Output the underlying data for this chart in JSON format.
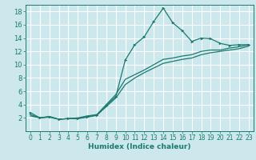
{
  "xlabel": "Humidex (Indice chaleur)",
  "ylabel": "",
  "bg_color": "#cce8ec",
  "grid_color": "#ffffff",
  "line_color": "#1a7a6e",
  "xlim": [
    -0.5,
    23.5
  ],
  "ylim": [
    0,
    19
  ],
  "xticks": [
    0,
    1,
    2,
    3,
    4,
    5,
    6,
    7,
    8,
    9,
    10,
    11,
    12,
    13,
    14,
    15,
    16,
    17,
    18,
    19,
    20,
    21,
    22,
    23
  ],
  "yticks": [
    2,
    4,
    6,
    8,
    10,
    12,
    14,
    16,
    18
  ],
  "line1_x": [
    0,
    1,
    2,
    3,
    4,
    5,
    6,
    7,
    8,
    9,
    10,
    11,
    12,
    13,
    14,
    15,
    16,
    17,
    18,
    19,
    20,
    21,
    22,
    23
  ],
  "line1_y": [
    2.8,
    2.0,
    2.2,
    1.8,
    1.9,
    1.9,
    2.2,
    2.4,
    3.9,
    5.2,
    10.7,
    13.0,
    14.2,
    16.5,
    18.5,
    16.3,
    15.1,
    13.5,
    14.0,
    13.9,
    13.2,
    12.9,
    13.0,
    13.0
  ],
  "line2_x": [
    0,
    1,
    2,
    3,
    4,
    5,
    6,
    7,
    8,
    9,
    10,
    11,
    12,
    13,
    14,
    15,
    16,
    17,
    18,
    19,
    20,
    21,
    22,
    23
  ],
  "line2_y": [
    2.5,
    2.0,
    2.2,
    1.8,
    1.9,
    2.0,
    2.3,
    2.5,
    4.0,
    5.5,
    7.8,
    8.5,
    9.2,
    10.0,
    10.8,
    11.0,
    11.3,
    11.5,
    12.0,
    12.2,
    12.2,
    12.5,
    12.7,
    13.0
  ],
  "line3_x": [
    0,
    1,
    2,
    3,
    4,
    5,
    6,
    7,
    8,
    9,
    10,
    11,
    12,
    13,
    14,
    15,
    16,
    17,
    18,
    19,
    20,
    21,
    22,
    23
  ],
  "line3_y": [
    2.3,
    2.0,
    2.1,
    1.8,
    1.9,
    1.9,
    2.1,
    2.4,
    3.7,
    5.0,
    7.0,
    8.0,
    8.8,
    9.5,
    10.2,
    10.5,
    10.8,
    11.0,
    11.5,
    11.8,
    12.0,
    12.2,
    12.4,
    12.8
  ],
  "label_fontsize": 5.5,
  "xlabel_fontsize": 6.5
}
